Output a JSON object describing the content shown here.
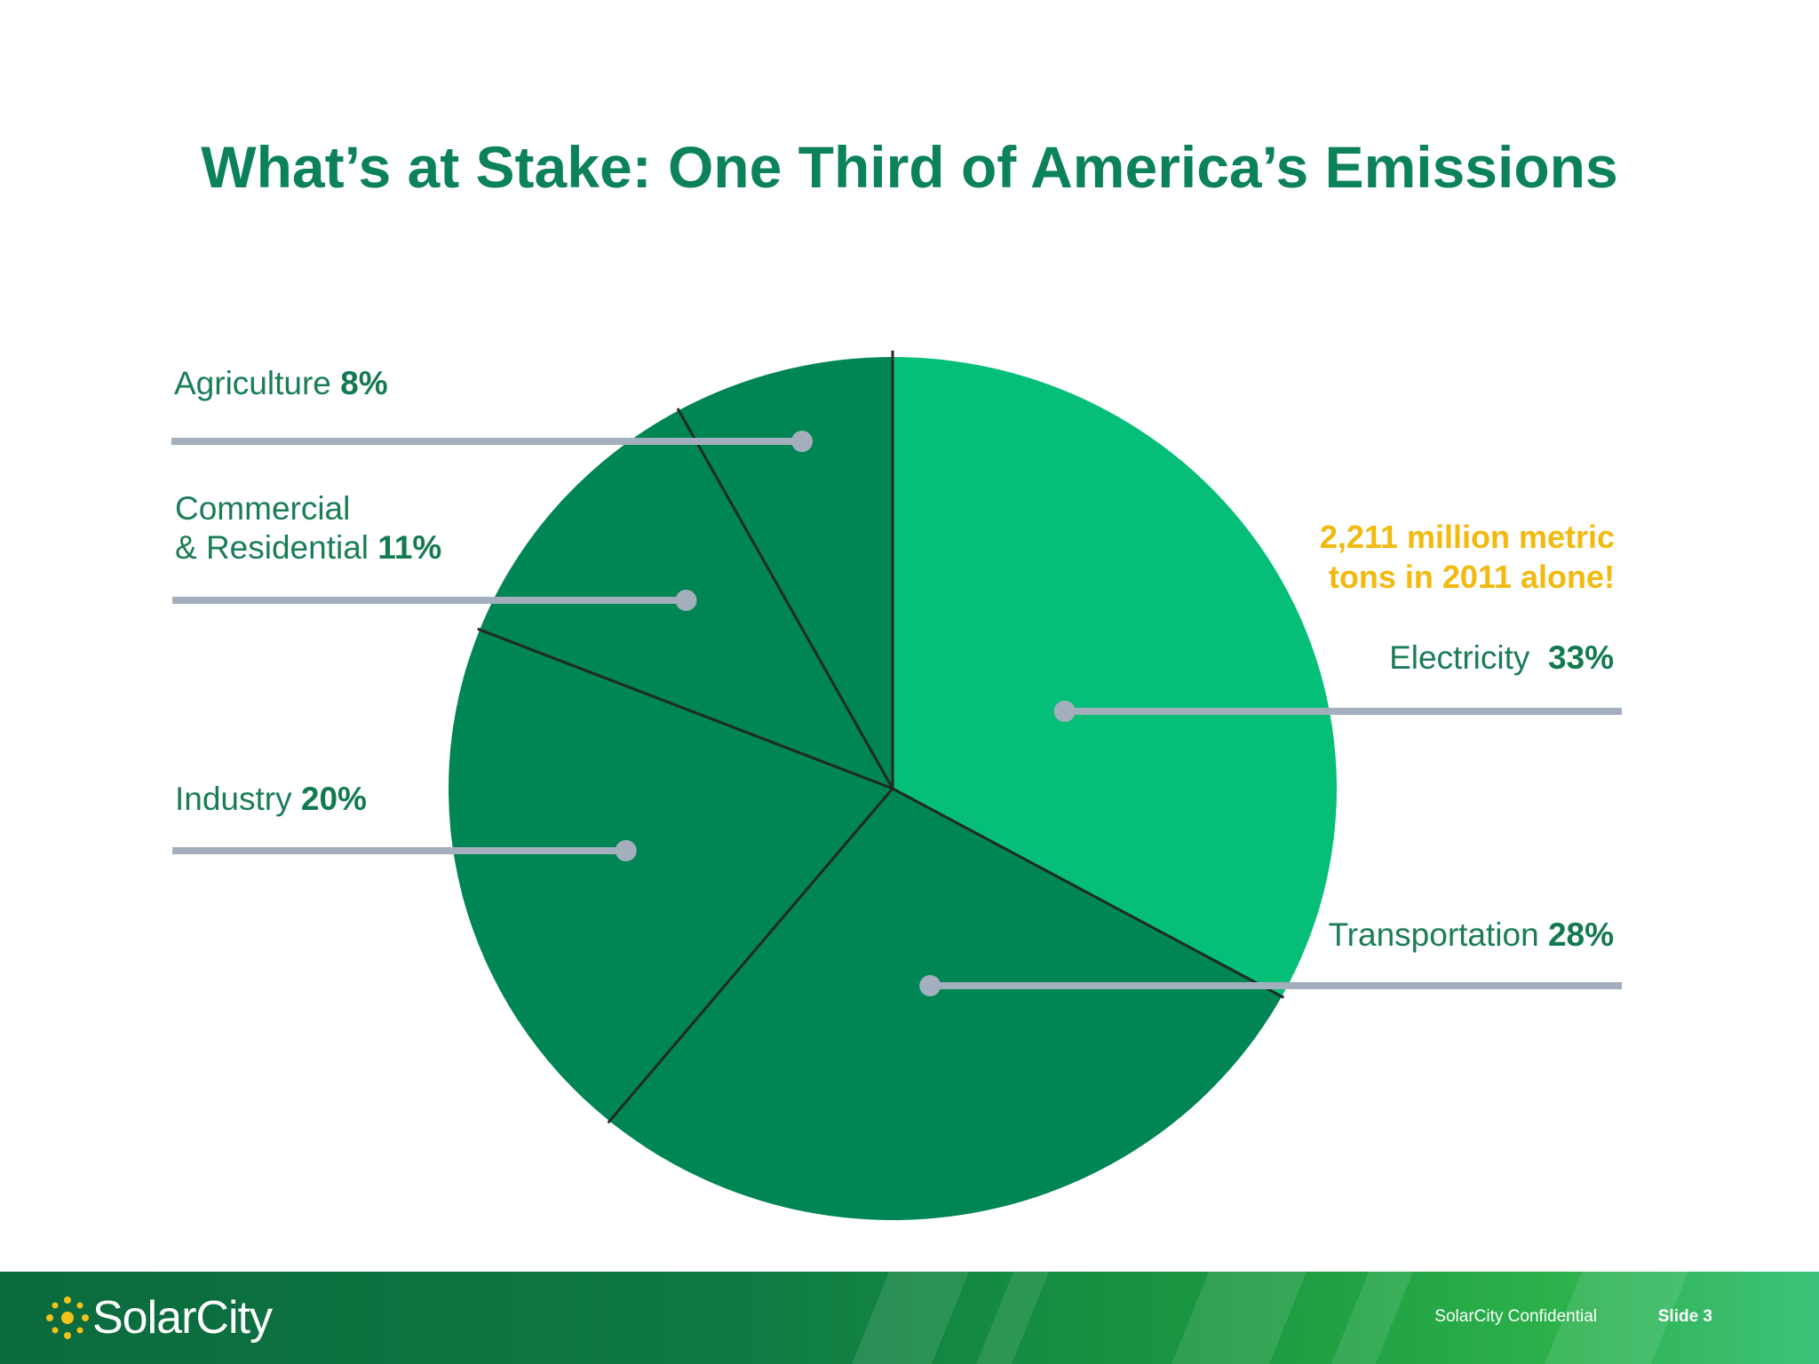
{
  "slide": {
    "title": "What’s at Stake: One Third of America’s Emissions",
    "callout_line1": "2,211 million metric",
    "callout_line2": "tons in 2011 alone!",
    "footer": {
      "logo_text": "SolarCity",
      "confidential": "SolarCity Confidential",
      "slide_number": "Slide 3"
    }
  },
  "chart_data": {
    "type": "pie",
    "title": "",
    "slices": [
      {
        "label": "Electricity",
        "value": 33,
        "value_label": "33%",
        "color": "#05bf78"
      },
      {
        "label": "Transportation",
        "value": 28,
        "value_label": "28%",
        "color": "#008554"
      },
      {
        "label": "Industry",
        "value": 20,
        "value_label": "20%",
        "color": "#008554"
      },
      {
        "label": "Commercial",
        "label_line2": "& Residential",
        "value": 11,
        "value_label": "11%",
        "color": "#008554"
      },
      {
        "label": "Agriculture",
        "value": 8,
        "value_label": "8%",
        "color": "#008554"
      }
    ],
    "colors": {
      "highlight": "#05bf78",
      "base": "#008554",
      "divider": "#1f2a24",
      "leader": "#a3afbc",
      "callout": "#f2b90f"
    }
  }
}
